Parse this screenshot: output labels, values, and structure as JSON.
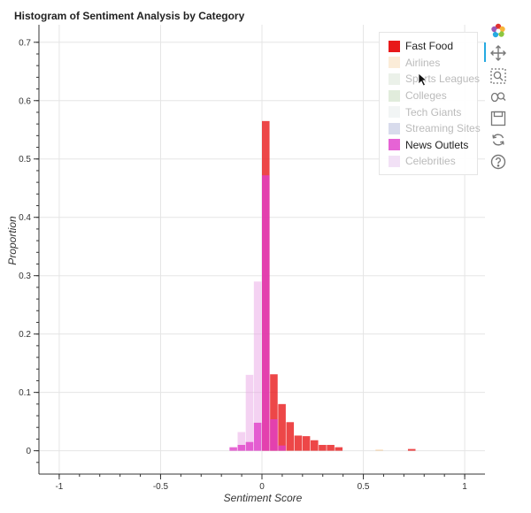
{
  "chart_data": {
    "type": "bar",
    "title": "Histogram of Sentiment Analysis by Category",
    "xlabel": "Sentiment Score",
    "ylabel": "Proportion",
    "xlim": [
      -1.1,
      1.1
    ],
    "ylim": [
      -0.04,
      0.73
    ],
    "xticks": [
      -1,
      -0.5,
      0,
      0.5,
      1
    ],
    "xtick_labels": [
      "-1",
      "-0.5",
      "0",
      "0.5",
      "1"
    ],
    "yticks": [
      0,
      0.1,
      0.2,
      0.3,
      0.4,
      0.5,
      0.6,
      0.7
    ],
    "ytick_labels": [
      "0",
      "0.1",
      "0.2",
      "0.3",
      "0.4",
      "0.5",
      "0.6",
      "0.7"
    ],
    "grid": true,
    "legend_position": "top-right",
    "bin_width": 0.04,
    "series": [
      {
        "name": "Fast Food",
        "color": "#e8191a",
        "visible": true,
        "bins": [
          {
            "x0": 0.0,
            "value": 0.565
          },
          {
            "x0": 0.04,
            "value": 0.131
          },
          {
            "x0": 0.08,
            "value": 0.08
          },
          {
            "x0": 0.12,
            "value": 0.049
          },
          {
            "x0": 0.16,
            "value": 0.026
          },
          {
            "x0": 0.2,
            "value": 0.025
          },
          {
            "x0": 0.24,
            "value": 0.018
          },
          {
            "x0": 0.28,
            "value": 0.01
          },
          {
            "x0": 0.32,
            "value": 0.01
          },
          {
            "x0": 0.36,
            "value": 0.006
          },
          {
            "x0": 0.72,
            "value": 0.003
          }
        ]
      },
      {
        "name": "News Outlets",
        "color": "#e040c8",
        "visible": true,
        "bins": [
          {
            "x0": -0.16,
            "value": 0.006
          },
          {
            "x0": -0.12,
            "value": 0.01
          },
          {
            "x0": -0.08,
            "value": 0.015
          },
          {
            "x0": -0.04,
            "value": 0.048
          },
          {
            "x0": 0.0,
            "value": 0.472
          },
          {
            "x0": 0.04,
            "value": 0.054
          },
          {
            "x0": 0.08,
            "value": 0.009
          }
        ]
      },
      {
        "name": "Celebrities",
        "color": "#e69be3",
        "visible": false,
        "bins": [
          {
            "x0": -0.12,
            "value": 0.032
          },
          {
            "x0": -0.08,
            "value": 0.13
          },
          {
            "x0": -0.04,
            "value": 0.29
          }
        ]
      },
      {
        "name": "Airlines",
        "color": "#f7b76b",
        "visible": false,
        "bins": [
          {
            "x0": 0.56,
            "value": 0.002
          }
        ]
      }
    ],
    "legend": [
      {
        "label": "Fast Food",
        "color": "#e8191a",
        "visible": true
      },
      {
        "label": "Airlines",
        "color": "#f3c98f",
        "visible": false
      },
      {
        "label": "Sports Leagues",
        "color": "#c7d8c0",
        "visible": false
      },
      {
        "label": "Colleges",
        "color": "#a9c89a",
        "visible": false
      },
      {
        "label": "Tech Giants",
        "color": "#d9e3e1",
        "visible": false
      },
      {
        "label": "Streaming Sites",
        "color": "#8f97c9",
        "visible": false
      },
      {
        "label": "News Outlets",
        "color": "#e663d5",
        "visible": true
      },
      {
        "label": "Celebrities",
        "color": "#dba8e6",
        "visible": false
      }
    ]
  },
  "toolbar": {
    "tools": [
      {
        "icon": "bokeh-logo-icon"
      },
      {
        "icon": "pan-icon"
      },
      {
        "icon": "box-zoom-icon"
      },
      {
        "icon": "wheel-zoom-icon"
      },
      {
        "icon": "save-icon"
      },
      {
        "icon": "reset-icon"
      },
      {
        "icon": "help-icon"
      }
    ]
  }
}
